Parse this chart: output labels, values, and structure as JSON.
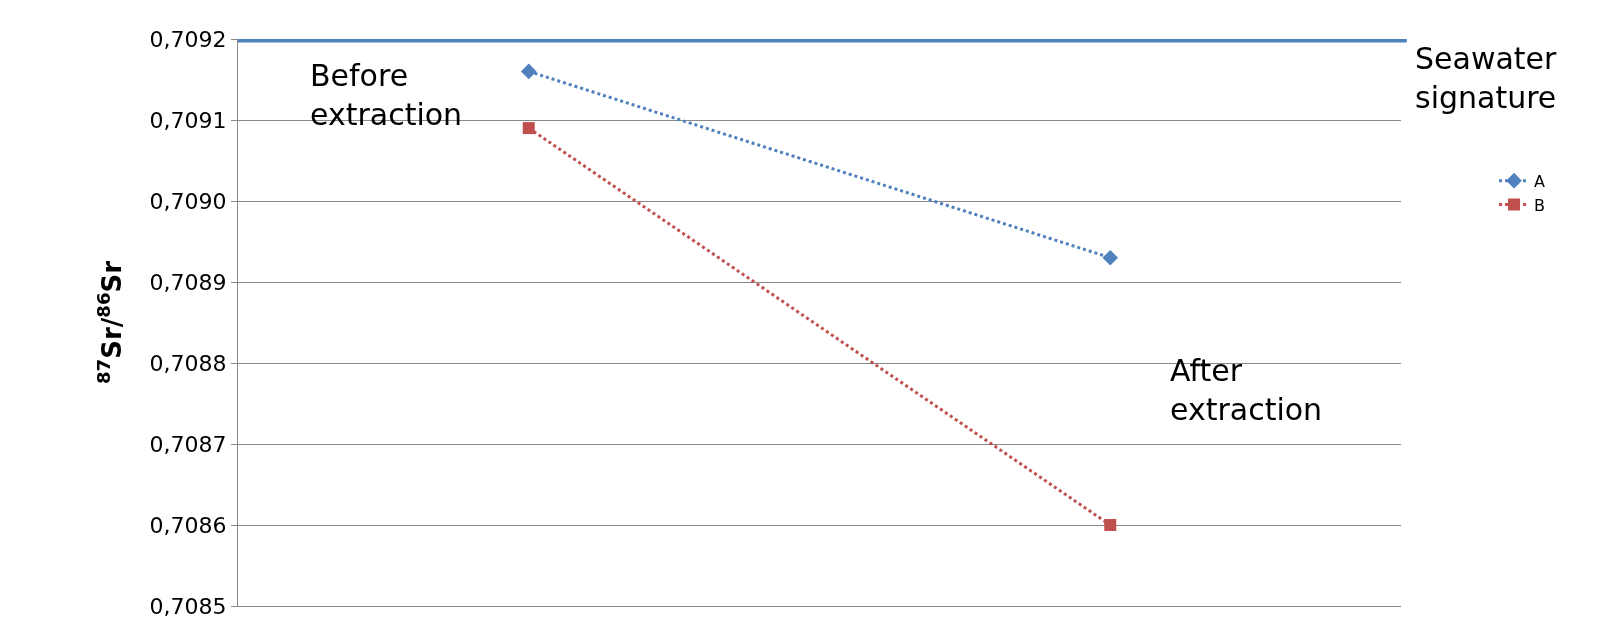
{
  "chart_data": {
    "type": "line",
    "ylabel": "$^{87}$Sr/$^{86}$Sr",
    "categories": [
      null,
      null
    ],
    "series": [
      {
        "name": "A",
        "color": "#4f81bd",
        "marker": "diamond",
        "values": [
          0.70916,
          0.70893
        ]
      },
      {
        "name": "B",
        "color": "#c0504d",
        "marker": "square",
        "values": [
          0.70909,
          0.7086
        ]
      }
    ],
    "ylim": [
      0.7085,
      0.7092
    ],
    "yticks": [
      {
        "value": 0.7085,
        "label": "0,7085"
      },
      {
        "value": 0.7086,
        "label": "0,7086"
      },
      {
        "value": 0.7087,
        "label": "0,7087"
      },
      {
        "value": 0.7088,
        "label": "0,7088"
      },
      {
        "value": 0.7089,
        "label": "0,7089"
      },
      {
        "value": 0.709,
        "label": "0,7090"
      },
      {
        "value": 0.7091,
        "label": "0,7091"
      },
      {
        "value": 0.7092,
        "label": "0,7092"
      }
    ],
    "ref_lines": [
      {
        "axis": "y",
        "value": 0.7092,
        "label": "Seawater signature",
        "color": "#4f81bd",
        "line_style": "solid"
      }
    ],
    "annotations": [
      "Before extraction",
      "After extraction"
    ],
    "line_style": "dotted",
    "grid": "y",
    "legend": "right",
    "tick_labels": "y"
  }
}
